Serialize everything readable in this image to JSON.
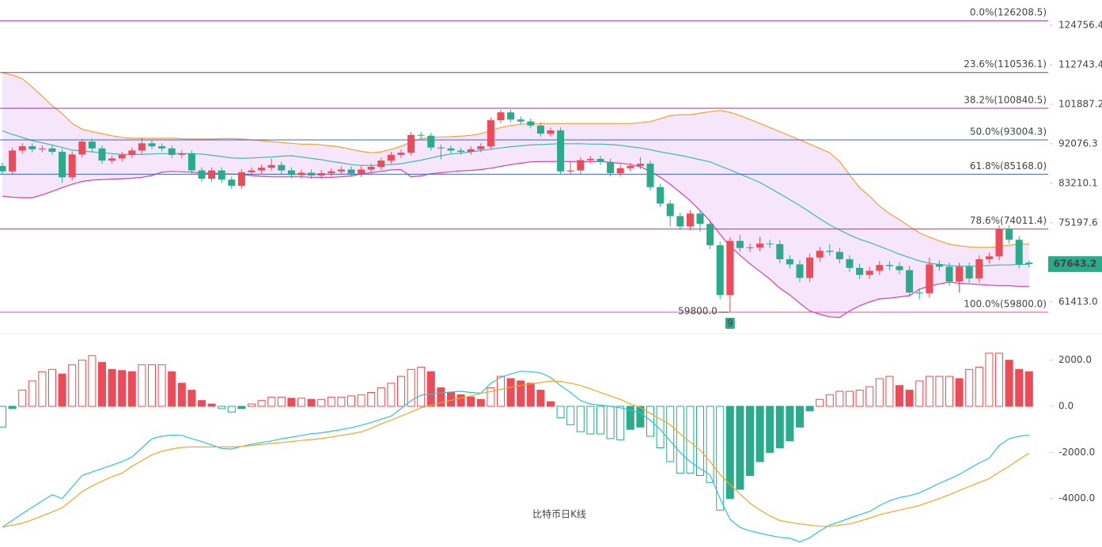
{
  "chart_data": [
    {
      "type": "candlestick",
      "title": "比特币日K线",
      "log": true,
      "ylim": [
        58600,
        133100
      ],
      "yticks": [
        124756.4,
        112743.4,
        101887.2,
        92076.3,
        83210.1,
        75197.6,
        {
          "value": 61413,
          "label": "61413.0"
        }
      ],
      "up_color": "#ec4b57",
      "down_color": "#2aab8b",
      "band_fill": "#f4e2fb",
      "last_price": 67643.2,
      "low_label": {
        "value": 59800,
        "label": "59800.0"
      },
      "marker": 9,
      "fib_levels": [
        {
          "value": 126208.5,
          "label": "0.0%(126208.5)",
          "color": "#8e2fb0"
        },
        {
          "value": 110536.1,
          "label": "23.6%(110536.1)",
          "color": "#9b2fb5"
        },
        {
          "value": 100840.5,
          "label": "38.2%(100840.5)",
          "color": "#9b2fb5"
        },
        {
          "value": 93004.3,
          "label": "50.0%(93004.3)",
          "color": "#3f64c8"
        },
        {
          "value": 85168.0,
          "label": "61.8%(85168.0)",
          "color": "#3f64c8"
        },
        {
          "value": 74011.4,
          "label": "78.6%(74011.4)",
          "color": "#c2288f"
        },
        {
          "value": 59800.0,
          "label": "100.0%(59800.0)",
          "color": "#e04fa8"
        }
      ],
      "open": [
        87000,
        85800,
        90500,
        91500,
        90800,
        91000,
        90200,
        84500,
        89600,
        92600,
        91000,
        88200,
        88700,
        89500,
        90500,
        92200,
        91500,
        91000,
        89500,
        89800,
        86000,
        84200,
        86000,
        84000,
        82700,
        85600,
        86000,
        86600,
        87200,
        86000,
        85000,
        85500,
        84900,
        85400,
        85800,
        86200,
        85300,
        86200,
        86800,
        88200,
        89500,
        90000,
        94200,
        94000,
        91200,
        91000,
        90500,
        90200,
        90800,
        91500,
        97800,
        99800,
        98000,
        97500,
        96500,
        94500,
        95300,
        85800,
        86000,
        88300,
        88600,
        87900,
        85400,
        86500,
        87000,
        87500,
        82400,
        79000,
        76500,
        74500,
        77000,
        75000,
        71000,
        62500,
        71800,
        70500,
        70600,
        71300,
        71200,
        68500,
        67600,
        65300,
        68800,
        70000,
        69800,
        68500,
        67000,
        65800,
        66500,
        67500,
        67300,
        66600,
        62900,
        62800,
        67600,
        67200,
        64700,
        67200,
        65200,
        68500,
        69000,
        74000,
        72000,
        67900
      ],
      "high": [
        87700,
        91200,
        92200,
        92200,
        91700,
        91700,
        90900,
        90300,
        93300,
        93300,
        91700,
        89400,
        90200,
        91200,
        93500,
        92900,
        92200,
        91700,
        90500,
        90500,
        86700,
        86700,
        86700,
        84700,
        86300,
        86700,
        87300,
        88600,
        87900,
        86700,
        86200,
        86200,
        86100,
        86500,
        86900,
        86900,
        86900,
        87500,
        88900,
        90200,
        90700,
        94900,
        94900,
        94700,
        91900,
        91700,
        91200,
        91500,
        92200,
        98500,
        100500,
        100500,
        98700,
        98200,
        97200,
        96000,
        96000,
        88000,
        89000,
        89300,
        89300,
        88600,
        87200,
        87700,
        89000,
        88200,
        83100,
        79700,
        77200,
        77700,
        77700,
        75700,
        71700,
        72500,
        72900,
        71300,
        72600,
        72000,
        71900,
        69200,
        68300,
        69500,
        70700,
        71200,
        70500,
        69200,
        67700,
        67200,
        68200,
        68200,
        68000,
        67300,
        63600,
        68800,
        68300,
        67900,
        67900,
        67900,
        69200,
        69700,
        74700,
        74700,
        72700,
        68300
      ],
      "low": [
        85100,
        85100,
        89800,
        90100,
        90100,
        89500,
        83300,
        83800,
        88900,
        90300,
        87500,
        87500,
        88000,
        88800,
        89800,
        90800,
        90300,
        88800,
        88800,
        85300,
        83500,
        83500,
        83300,
        82000,
        82000,
        84900,
        85300,
        85900,
        85300,
        84300,
        84300,
        84200,
        84200,
        84700,
        85100,
        84600,
        84600,
        85500,
        86100,
        87500,
        88800,
        89300,
        93300,
        90500,
        88500,
        89800,
        89500,
        89500,
        90100,
        90800,
        97100,
        97300,
        96800,
        95800,
        93800,
        93800,
        85100,
        85100,
        85300,
        87600,
        87200,
        84700,
        84700,
        85800,
        86300,
        81700,
        78300,
        74500,
        73800,
        73800,
        73500,
        70300,
        61800,
        59800,
        69800,
        69800,
        69900,
        70500,
        67800,
        66900,
        64600,
        64600,
        68100,
        69100,
        67800,
        66300,
        65100,
        65100,
        65800,
        66600,
        65900,
        62200,
        61800,
        62100,
        66500,
        64000,
        62900,
        64500,
        64500,
        67800,
        68300,
        71300,
        66900,
        67000
      ],
      "close": [
        85800,
        90500,
        91500,
        90800,
        91000,
        90200,
        84500,
        89600,
        92600,
        91000,
        88200,
        88700,
        89500,
        90500,
        92200,
        91500,
        91000,
        89500,
        89800,
        86000,
        84200,
        86000,
        84000,
        82700,
        85600,
        86000,
        86600,
        87200,
        86000,
        85000,
        85500,
        84900,
        85400,
        85800,
        86200,
        85300,
        86200,
        86800,
        88200,
        89500,
        90000,
        94200,
        94000,
        91200,
        91000,
        90500,
        90200,
        90800,
        91500,
        97800,
        99800,
        98000,
        97500,
        96500,
        94500,
        95300,
        85800,
        86000,
        88300,
        88600,
        87900,
        85400,
        86500,
        87000,
        87500,
        82400,
        79000,
        76500,
        74500,
        77000,
        75000,
        71000,
        62500,
        71800,
        70500,
        70600,
        71300,
        71200,
        68500,
        67600,
        65300,
        68800,
        70000,
        69800,
        68500,
        67000,
        65800,
        66500,
        67500,
        67300,
        66600,
        62900,
        62800,
        67600,
        67200,
        64700,
        67200,
        65200,
        68500,
        69000,
        74000,
        72000,
        67600,
        67643.2
      ],
      "series": [
        {
          "color": "#f5a32a",
          "values": [
            110500,
            109800,
            108800,
            106500,
            104000,
            101500,
            99500,
            97000,
            95600,
            95000,
            94500,
            94000,
            93600,
            93400,
            93400,
            93400,
            93400,
            93400,
            93300,
            93200,
            93200,
            93200,
            93300,
            93300,
            93200,
            93000,
            92800,
            92600,
            92400,
            92200,
            92000,
            92000,
            91800,
            91600,
            91300,
            90800,
            90300,
            90000,
            90200,
            90800,
            91500,
            92500,
            93300,
            93600,
            93700,
            93800,
            93900,
            94100,
            94500,
            95200,
            96000,
            96500,
            96800,
            96900,
            97000,
            97000,
            97000,
            97000,
            97000,
            97000,
            97000,
            97000,
            97000,
            97000,
            97200,
            97500,
            98200,
            99000,
            99200,
            99200,
            99600,
            100000,
            100300,
            99800,
            99000,
            98000,
            97000,
            96000,
            95000,
            94000,
            93000,
            92000,
            91000,
            90000,
            88000,
            85000,
            82300,
            80500,
            78500,
            77000,
            75800,
            74500,
            73300,
            72500,
            71800,
            71200,
            70900,
            70700,
            70600,
            70600,
            70800,
            71000,
            71200,
            71200
          ]
        },
        {
          "color": "#3db7b4",
          "values": [
            95200,
            94300,
            93600,
            92800,
            92300,
            91800,
            91200,
            90600,
            90400,
            90200,
            90000,
            89800,
            89600,
            89600,
            89600,
            89700,
            89800,
            89800,
            89800,
            89800,
            89700,
            89400,
            89100,
            88800,
            88700,
            88800,
            88900,
            89000,
            89200,
            89300,
            89000,
            88700,
            88400,
            88000,
            87700,
            87300,
            87100,
            87100,
            87200,
            87300,
            87500,
            87900,
            88300,
            88800,
            89300,
            89700,
            89900,
            90200,
            90500,
            90800,
            91100,
            91400,
            91600,
            91800,
            91900,
            92000,
            92100,
            92100,
            92100,
            92000,
            92000,
            91900,
            91700,
            91400,
            91100,
            90700,
            90200,
            89800,
            89400,
            88900,
            88400,
            87900,
            87000,
            86100,
            85200,
            84300,
            83400,
            82200,
            81000,
            79800,
            78600,
            77300,
            76000,
            74800,
            73800,
            72900,
            72100,
            71500,
            70800,
            70100,
            69400,
            68800,
            68200,
            67800,
            67600,
            67400,
            67300,
            67300,
            67300,
            67400,
            67500,
            67500,
            67600,
            67600
          ]
        },
        {
          "color": "#d63fb2",
          "values": [
            80500,
            80300,
            80200,
            80200,
            80800,
            81500,
            82300,
            83000,
            83600,
            83900,
            84000,
            84100,
            84200,
            84300,
            84500,
            84900,
            85600,
            85800,
            85700,
            85600,
            85400,
            85400,
            85300,
            85200,
            85100,
            84900,
            84700,
            84600,
            84600,
            84600,
            84600,
            84500,
            84500,
            84500,
            84600,
            84800,
            85200,
            85500,
            85800,
            86100,
            86200,
            84600,
            84800,
            85300,
            85500,
            85700,
            85900,
            86000,
            86200,
            86500,
            86900,
            87300,
            87600,
            87900,
            88000,
            88000,
            88000,
            88000,
            88000,
            88000,
            88000,
            87800,
            87600,
            87300,
            86800,
            85800,
            84500,
            83000,
            81300,
            79600,
            77600,
            75500,
            73000,
            70800,
            69200,
            67700,
            66400,
            65100,
            63600,
            62500,
            61200,
            60000,
            59500,
            59100,
            59000,
            60000,
            60800,
            61400,
            61900,
            62000,
            62200,
            62400,
            63400,
            64000,
            64300,
            64600,
            64400,
            64300,
            64200,
            64100,
            64000,
            64000,
            63900,
            63900
          ]
        }
      ]
    },
    {
      "type": "macd",
      "ylim": [
        -6100,
        3050
      ],
      "yticks": [
        {
          "value": 2000,
          "label": "2000.0"
        },
        {
          "value": 0,
          "label": "0.0"
        },
        {
          "value": -2000,
          "label": "-2000.0"
        },
        {
          "value": -4000,
          "label": "-4000.0"
        }
      ],
      "up_color": "#ec4b57",
      "down_color": "#2aab8b",
      "values": [
        -900,
        -100,
        700,
        1100,
        1500,
        1600,
        1400,
        1800,
        2000,
        2200,
        1900,
        1600,
        1550,
        1500,
        1800,
        1800,
        1800,
        1500,
        1000,
        700,
        250,
        100,
        -100,
        -250,
        -100,
        100,
        250,
        400,
        400,
        350,
        350,
        300,
        300,
        400,
        400,
        450,
        500,
        600,
        800,
        1000,
        1300,
        1600,
        1700,
        1500,
        800,
        600,
        500,
        400,
        300,
        800,
        1300,
        1200,
        1100,
        1000,
        700,
        200,
        -500,
        -800,
        -1100,
        -1200,
        -1200,
        -1400,
        -1450,
        -1000,
        -900,
        -1300,
        -1800,
        -2400,
        -2900,
        -2900,
        -3000,
        -3300,
        -4500,
        -4000,
        -3600,
        -3000,
        -2400,
        -2000,
        -1800,
        -1500,
        -900,
        -200,
        300,
        500,
        650,
        650,
        700,
        850,
        1200,
        1300,
        900,
        700,
        1100,
        1300,
        1300,
        1300,
        1200,
        1600,
        1700,
        2300,
        2300,
        2000,
        1600,
        1500
      ],
      "series": [
        {
          "color": "#2cc6d6",
          "values": [
            -5240,
            -4950,
            -4650,
            -4380,
            -4100,
            -3830,
            -4000,
            -3500,
            -3000,
            -2850,
            -2700,
            -2550,
            -2400,
            -2200,
            -1800,
            -1400,
            -1300,
            -1250,
            -1260,
            -1400,
            -1530,
            -1680,
            -1830,
            -1850,
            -1740,
            -1650,
            -1570,
            -1500,
            -1410,
            -1340,
            -1260,
            -1190,
            -1150,
            -1080,
            -1010,
            -930,
            -820,
            -700,
            -560,
            -420,
            -100,
            250,
            480,
            530,
            580,
            620,
            650,
            600,
            570,
            1000,
            1250,
            1400,
            1520,
            1500,
            1450,
            1250,
            900,
            600,
            250,
            100,
            50,
            0,
            -60,
            -170,
            -280,
            -600,
            -1000,
            -1500,
            -2000,
            -2400,
            -2700,
            -2970,
            -4000,
            -4900,
            -5250,
            -5400,
            -5500,
            -5600,
            -5680,
            -5720,
            -5880,
            -5700,
            -5400,
            -5150,
            -5000,
            -4850,
            -4700,
            -4560,
            -4300,
            -4100,
            -3950,
            -3880,
            -3750,
            -3550,
            -3340,
            -3150,
            -2950,
            -2700,
            -2450,
            -2250,
            -1700,
            -1400,
            -1300,
            -1240
          ]
        },
        {
          "color": "#f5a623",
          "values": [
            -5240,
            -5150,
            -5070,
            -4920,
            -4750,
            -4580,
            -4400,
            -4050,
            -3700,
            -3450,
            -3250,
            -3050,
            -2900,
            -2600,
            -2350,
            -2100,
            -1950,
            -1850,
            -1780,
            -1760,
            -1760,
            -1760,
            -1760,
            -1760,
            -1740,
            -1700,
            -1650,
            -1610,
            -1570,
            -1530,
            -1480,
            -1440,
            -1400,
            -1330,
            -1260,
            -1190,
            -1110,
            -950,
            -760,
            -600,
            -420,
            -250,
            -60,
            50,
            150,
            260,
            360,
            450,
            560,
            640,
            740,
            830,
            900,
            970,
            1030,
            1090,
            1080,
            1000,
            900,
            760,
            600,
            450,
            300,
            100,
            -50,
            -300,
            -550,
            -800,
            -1200,
            -1550,
            -1900,
            -2400,
            -2950,
            -3400,
            -3800,
            -4200,
            -4500,
            -4750,
            -4950,
            -5030,
            -5100,
            -5150,
            -5200,
            -5210,
            -5150,
            -5100,
            -4980,
            -4850,
            -4700,
            -4600,
            -4500,
            -4400,
            -4300,
            -4150,
            -4000,
            -3830,
            -3650,
            -3480,
            -3300,
            -3140,
            -2850,
            -2600,
            -2300,
            -2030
          ]
        }
      ]
    }
  ]
}
